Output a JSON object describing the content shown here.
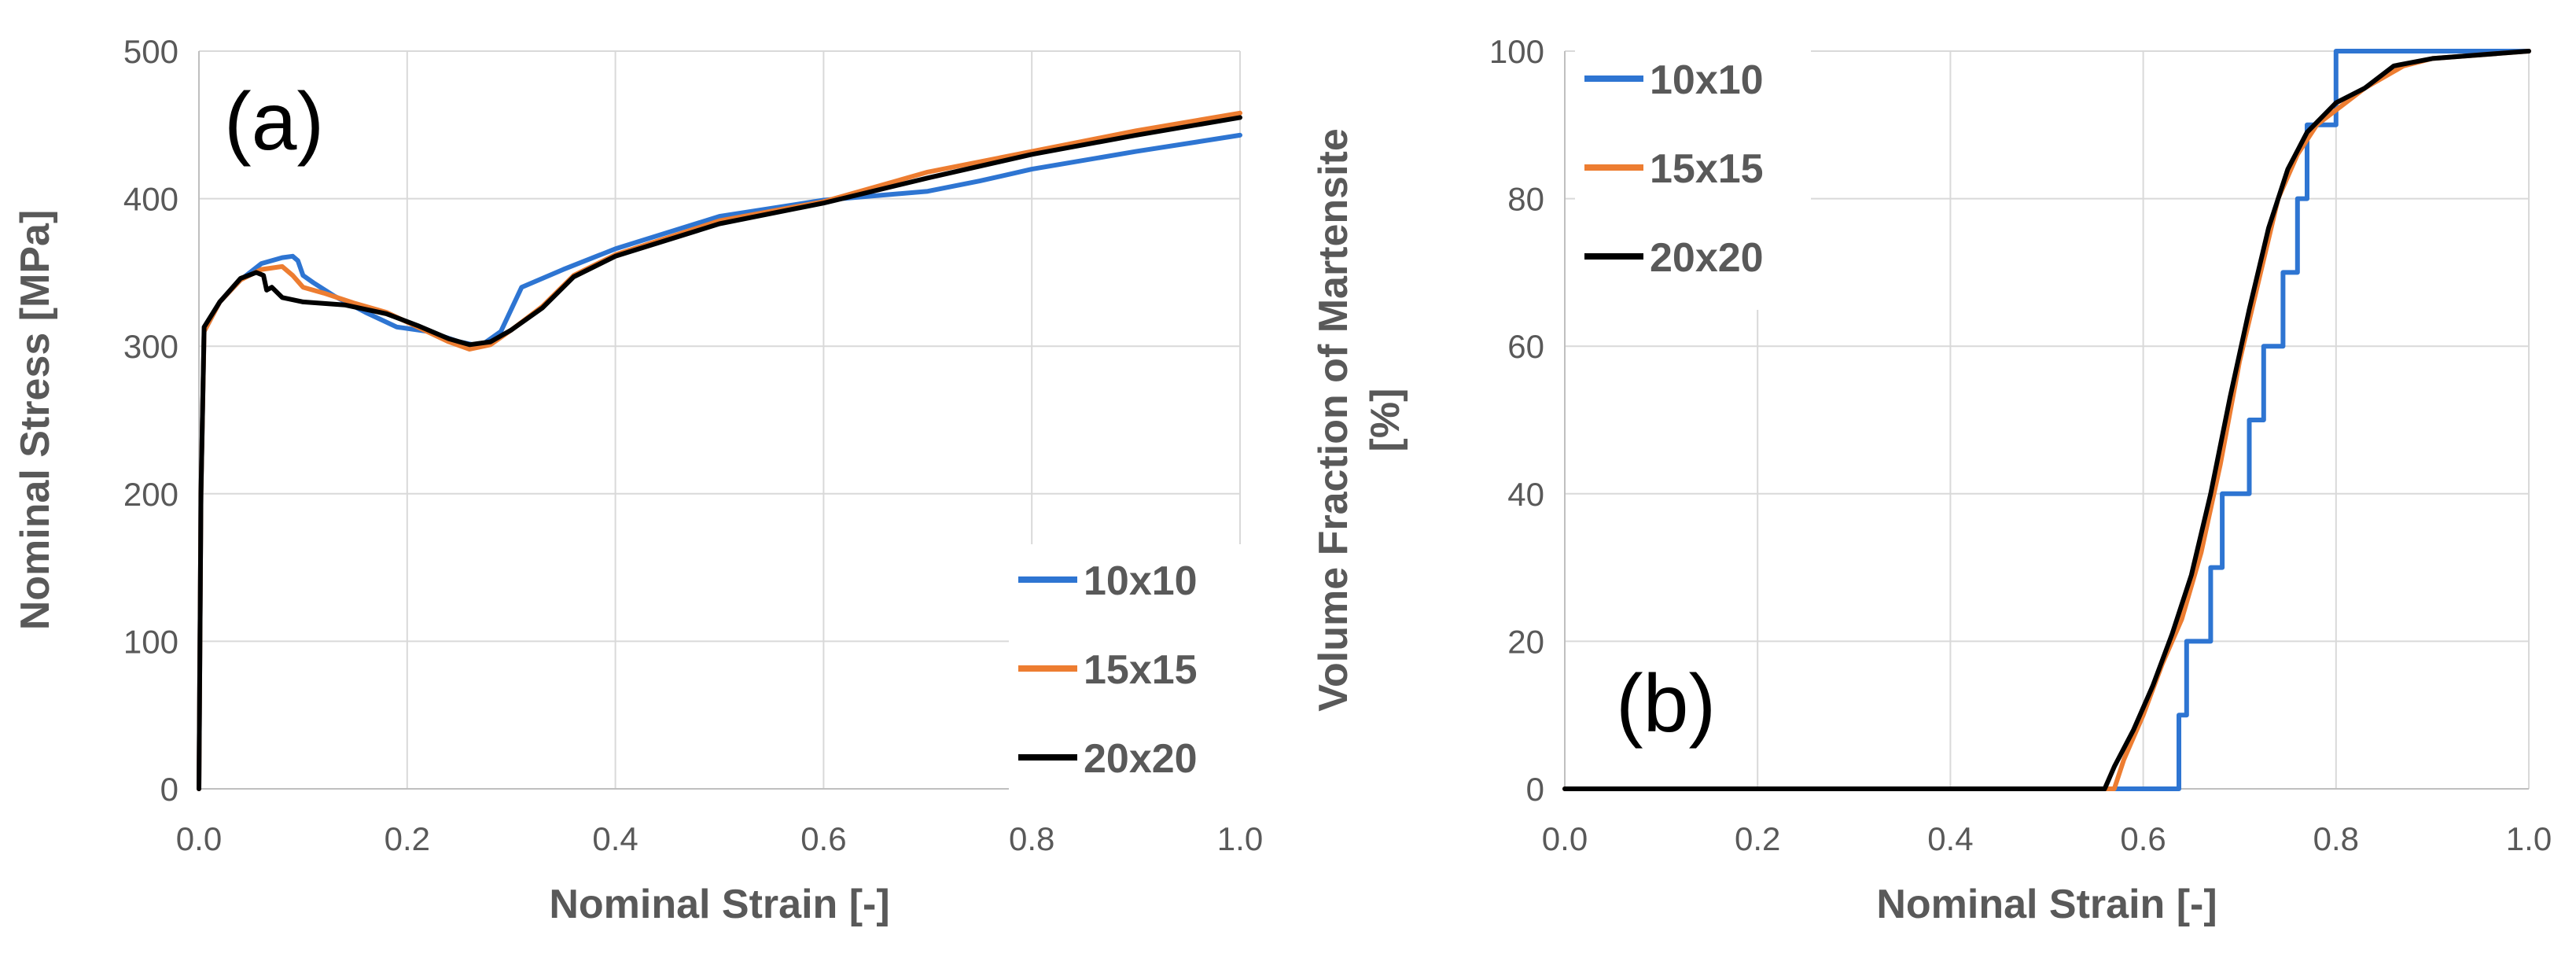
{
  "chart_data": [
    {
      "type": "line",
      "panel_label": "(a)",
      "title": "",
      "xlabel": "Nominal Strain [-]",
      "ylabel": "Nominal Stress [MPa]",
      "xlim": [
        0,
        1
      ],
      "ylim": [
        0,
        500
      ],
      "xticks": [
        "0.0",
        "0.2",
        "0.4",
        "0.6",
        "0.8",
        "1.0"
      ],
      "yticks": [
        "0",
        "100",
        "200",
        "300",
        "400",
        "500"
      ],
      "grid": true,
      "legend_position": "bottom-right",
      "series": [
        {
          "name": "10x10",
          "color": "#2E75D2",
          "points": [
            [
              0.0,
              0
            ],
            [
              0.002,
              200
            ],
            [
              0.005,
              310
            ],
            [
              0.02,
              330
            ],
            [
              0.04,
              345
            ],
            [
              0.06,
              356
            ],
            [
              0.08,
              360
            ],
            [
              0.09,
              361
            ],
            [
              0.095,
              358
            ],
            [
              0.1,
              348
            ],
            [
              0.11,
              343
            ],
            [
              0.13,
              334
            ],
            [
              0.16,
              323
            ],
            [
              0.19,
              313
            ],
            [
              0.22,
              310
            ],
            [
              0.25,
              303
            ],
            [
              0.27,
              300
            ],
            [
              0.29,
              310
            ],
            [
              0.31,
              340
            ],
            [
              0.35,
              352
            ],
            [
              0.4,
              366
            ],
            [
              0.5,
              388
            ],
            [
              0.6,
              399
            ],
            [
              0.7,
              405
            ],
            [
              0.75,
              412
            ],
            [
              0.8,
              420
            ],
            [
              0.9,
              432
            ],
            [
              1.0,
              443
            ]
          ]
        },
        {
          "name": "15x15",
          "color": "#ED7D31",
          "points": [
            [
              0.0,
              0
            ],
            [
              0.002,
              200
            ],
            [
              0.005,
              310
            ],
            [
              0.02,
              330
            ],
            [
              0.04,
              345
            ],
            [
              0.06,
              352
            ],
            [
              0.08,
              354
            ],
            [
              0.09,
              348
            ],
            [
              0.1,
              340
            ],
            [
              0.12,
              336
            ],
            [
              0.15,
              329
            ],
            [
              0.18,
              323
            ],
            [
              0.21,
              313
            ],
            [
              0.24,
              303
            ],
            [
              0.26,
              298
            ],
            [
              0.28,
              301
            ],
            [
              0.3,
              311
            ],
            [
              0.33,
              327
            ],
            [
              0.36,
              348
            ],
            [
              0.4,
              362
            ],
            [
              0.5,
              385
            ],
            [
              0.6,
              398
            ],
            [
              0.7,
              418
            ],
            [
              0.8,
              432
            ],
            [
              0.9,
              446
            ],
            [
              1.0,
              458
            ]
          ]
        },
        {
          "name": "20x20",
          "color": "#000000",
          "points": [
            [
              0.0,
              0
            ],
            [
              0.002,
              200
            ],
            [
              0.005,
              313
            ],
            [
              0.02,
              330
            ],
            [
              0.04,
              346
            ],
            [
              0.055,
              350
            ],
            [
              0.062,
              348
            ],
            [
              0.065,
              338
            ],
            [
              0.07,
              340
            ],
            [
              0.08,
              333
            ],
            [
              0.1,
              330
            ],
            [
              0.14,
              328
            ],
            [
              0.18,
              322
            ],
            [
              0.21,
              314
            ],
            [
              0.24,
              305
            ],
            [
              0.26,
              301
            ],
            [
              0.28,
              303
            ],
            [
              0.3,
              311
            ],
            [
              0.33,
              326
            ],
            [
              0.36,
              347
            ],
            [
              0.4,
              361
            ],
            [
              0.5,
              383
            ],
            [
              0.6,
              397
            ],
            [
              0.7,
              414
            ],
            [
              0.8,
              430
            ],
            [
              0.9,
              443
            ],
            [
              1.0,
              455
            ]
          ]
        }
      ]
    },
    {
      "type": "line",
      "panel_label": "(b)",
      "title": "",
      "xlabel": "Nominal Strain [-]",
      "ylabel": "Volume Fraction of Martensite [%]",
      "xlim": [
        0,
        1
      ],
      "ylim": [
        0,
        100
      ],
      "xticks": [
        "0.0",
        "0.2",
        "0.4",
        "0.6",
        "0.8",
        "1.0"
      ],
      "yticks": [
        "0",
        "20",
        "40",
        "60",
        "80",
        "100"
      ],
      "grid": true,
      "legend_position": "top-left",
      "series": [
        {
          "name": "10x10",
          "color": "#2E75D2",
          "points": [
            [
              0.0,
              0
            ],
            [
              0.637,
              0
            ],
            [
              0.637,
              10
            ],
            [
              0.645,
              10
            ],
            [
              0.645,
              20
            ],
            [
              0.67,
              20
            ],
            [
              0.67,
              30
            ],
            [
              0.682,
              30
            ],
            [
              0.682,
              40
            ],
            [
              0.71,
              40
            ],
            [
              0.71,
              50
            ],
            [
              0.725,
              50
            ],
            [
              0.725,
              60
            ],
            [
              0.745,
              60
            ],
            [
              0.745,
              70
            ],
            [
              0.76,
              70
            ],
            [
              0.76,
              80
            ],
            [
              0.77,
              80
            ],
            [
              0.77,
              90
            ],
            [
              0.8,
              90
            ],
            [
              0.8,
              100
            ],
            [
              1.0,
              100
            ]
          ]
        },
        {
          "name": "15x15",
          "color": "#ED7D31",
          "points": [
            [
              0.0,
              0
            ],
            [
              0.57,
              0
            ],
            [
              0.58,
              4
            ],
            [
              0.6,
              10
            ],
            [
              0.62,
              17
            ],
            [
              0.64,
              23
            ],
            [
              0.66,
              32
            ],
            [
              0.68,
              44
            ],
            [
              0.7,
              58
            ],
            [
              0.72,
              69
            ],
            [
              0.74,
              80
            ],
            [
              0.76,
              86
            ],
            [
              0.78,
              90
            ],
            [
              0.8,
              92
            ],
            [
              0.83,
              95
            ],
            [
              0.87,
              98
            ],
            [
              0.9,
              99
            ],
            [
              1.0,
              100
            ]
          ]
        },
        {
          "name": "20x20",
          "color": "#000000",
          "points": [
            [
              0.0,
              0
            ],
            [
              0.56,
              0
            ],
            [
              0.57,
              3
            ],
            [
              0.59,
              8
            ],
            [
              0.61,
              14
            ],
            [
              0.63,
              21
            ],
            [
              0.65,
              29
            ],
            [
              0.67,
              40
            ],
            [
              0.69,
              53
            ],
            [
              0.71,
              65
            ],
            [
              0.73,
              76
            ],
            [
              0.75,
              84
            ],
            [
              0.77,
              89
            ],
            [
              0.8,
              93
            ],
            [
              0.83,
              95
            ],
            [
              0.86,
              98
            ],
            [
              0.9,
              99
            ],
            [
              1.0,
              100
            ]
          ]
        }
      ]
    }
  ]
}
